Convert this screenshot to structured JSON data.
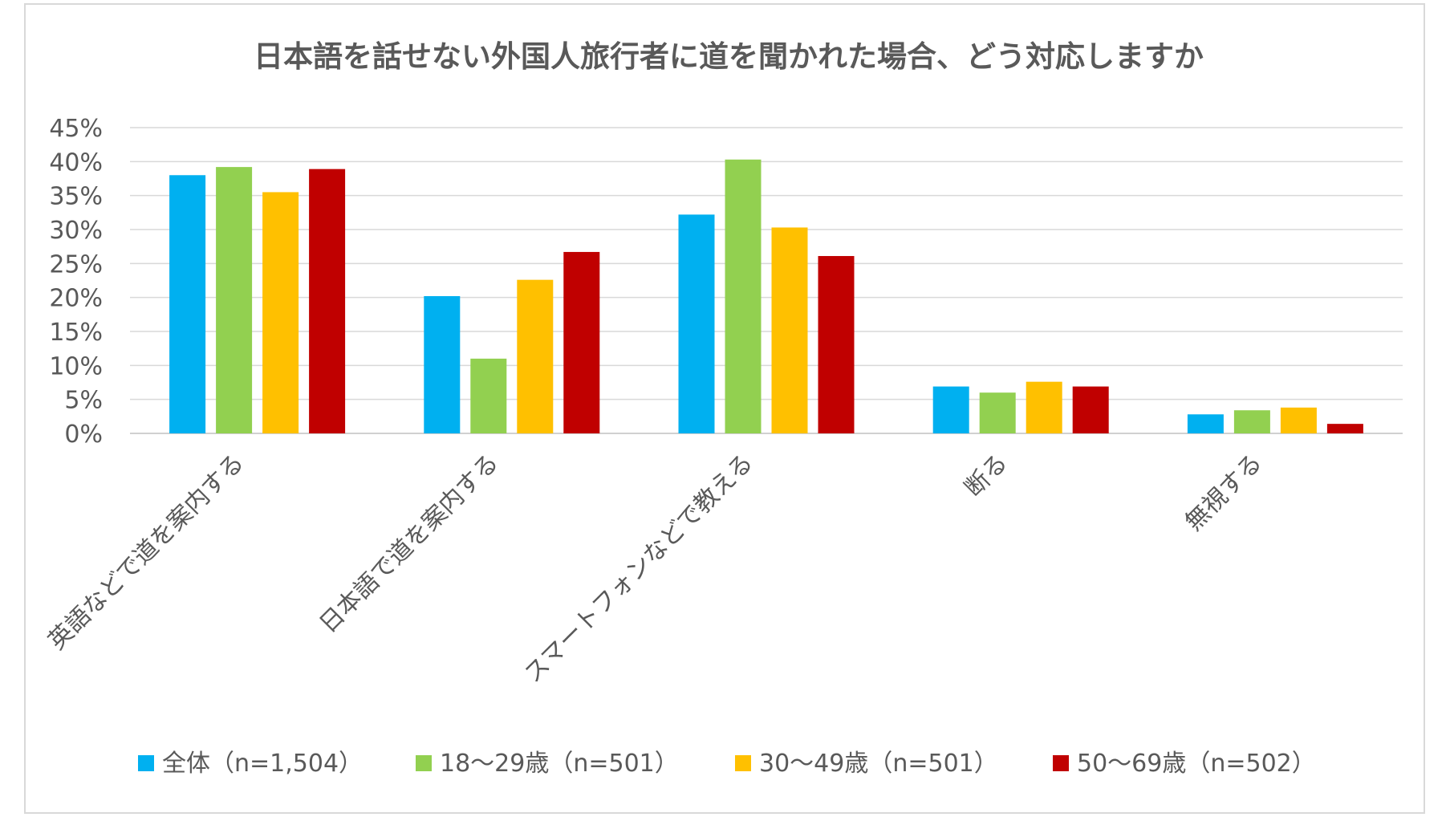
{
  "chart_data": {
    "type": "bar",
    "title": "日本語を話せない外国人旅行者に道を聞かれた場合、どう対応しますか",
    "xlabel": "",
    "ylabel": "",
    "ylim": [
      0,
      45
    ],
    "yticks": [
      "0%",
      "5%",
      "10%",
      "15%",
      "20%",
      "25%",
      "30%",
      "35%",
      "40%",
      "45%"
    ],
    "grid": true,
    "legend_position": "bottom",
    "categories": [
      "英語などで道を案内する",
      "日本語で道を案内する",
      "スマートフォンなどで教える",
      "断る",
      "無視する"
    ],
    "series": [
      {
        "name": "全体（n=1,504）",
        "color": "#00b0f0",
        "values": [
          38.0,
          20.2,
          32.2,
          6.9,
          2.8
        ]
      },
      {
        "name": "18～29歳（n=501）",
        "color": "#92d050",
        "values": [
          39.2,
          11.0,
          40.3,
          6.0,
          3.4
        ]
      },
      {
        "name": "30～49歳（n=501）",
        "color": "#ffc000",
        "values": [
          35.5,
          22.6,
          30.3,
          7.6,
          3.8
        ]
      },
      {
        "name": "50～69歳（n=502）",
        "color": "#c00000",
        "values": [
          38.9,
          26.7,
          26.1,
          6.9,
          1.4
        ]
      }
    ]
  }
}
